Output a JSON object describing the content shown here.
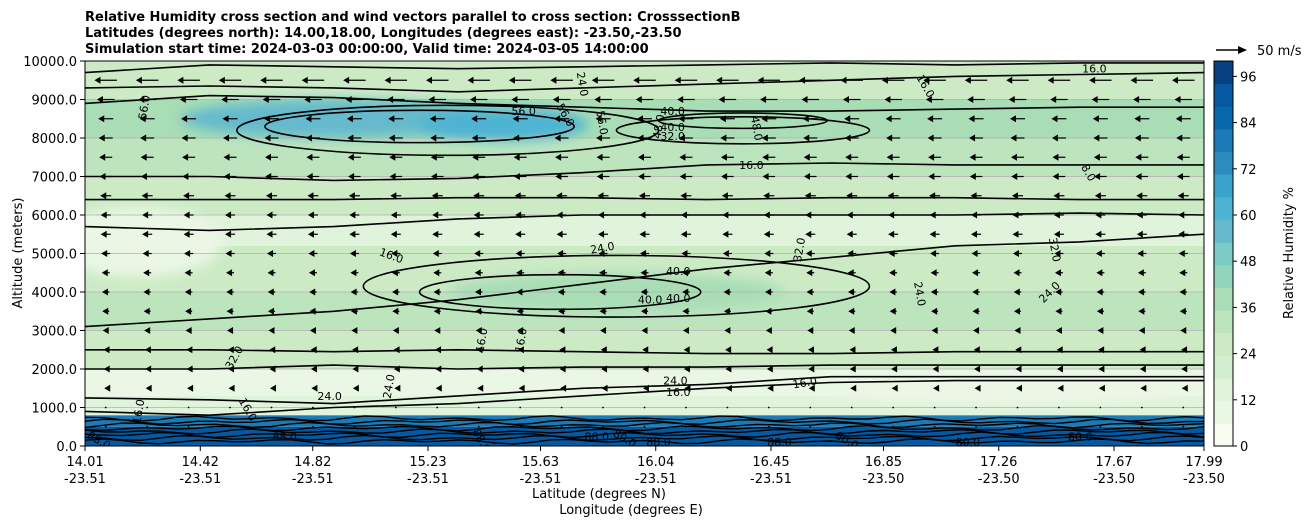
{
  "chart_data": {
    "type": "heatmap",
    "title_lines": [
      "Relative Humidity cross section and wind vectors parallel to cross section: CrosssectionB",
      "Latitudes (degrees north): 14.00,18.00, Longitudes (degrees east): -23.50,-23.50",
      "Simulation start time: 2024-03-03 00:00:00, Valid time: 2024-03-05 14:00:00"
    ],
    "ylabel": "Altitude (meters)",
    "xlabel_lines": [
      "Latitude (degrees N)",
      "Longitude (degrees E)"
    ],
    "ylim": [
      0,
      10000
    ],
    "yticks": [
      "0.0",
      "1000.0",
      "2000.0",
      "3000.0",
      "4000.0",
      "5000.0",
      "6000.0",
      "7000.0",
      "8000.0",
      "9000.0",
      "10000.0"
    ],
    "ytick_values": [
      0,
      1000,
      2000,
      3000,
      4000,
      5000,
      6000,
      7000,
      8000,
      9000,
      10000
    ],
    "xticks_lat": [
      "14.01",
      "14.42",
      "14.82",
      "15.23",
      "15.63",
      "16.04",
      "16.45",
      "16.85",
      "17.26",
      "17.67",
      "17.99"
    ],
    "xticks_lon": [
      "-23.51",
      "-23.51",
      "-23.51",
      "-23.51",
      "-23.51",
      "-23.51",
      "-23.51",
      "-23.50",
      "-23.50",
      "-23.50",
      "-23.50"
    ],
    "xtick_values": [
      14.01,
      14.42,
      14.82,
      15.23,
      15.63,
      16.04,
      16.45,
      16.85,
      17.26,
      17.67,
      17.99
    ],
    "xlim": [
      14.01,
      17.99
    ],
    "grid": "horizontal",
    "colorbar": {
      "label": "Relative Humidity %",
      "ticks": [
        "0",
        "12",
        "24",
        "36",
        "48",
        "60",
        "72",
        "84",
        "96"
      ],
      "tick_values": [
        0,
        12,
        24,
        36,
        48,
        60,
        72,
        84,
        96
      ],
      "range": [
        0,
        100
      ],
      "colors": [
        "#f7fcf0",
        "#ebf7e5",
        "#e0f3db",
        "#d3eece",
        "#ccebc5",
        "#bce5be",
        "#a8ddb5",
        "#92d4bc",
        "#7bccc4",
        "#65bacd",
        "#4eb3d3",
        "#3ba3c9",
        "#2b8cbe",
        "#1c7bb6",
        "#0868ac",
        "#0658a0",
        "#084081"
      ]
    },
    "quiver_key": {
      "label": "50 m/s",
      "value": 50
    },
    "rh_bands": [
      {
        "ymin": 0,
        "ymax": 500,
        "rh": 92
      },
      {
        "ymin": 500,
        "ymax": 800,
        "rh": 80
      },
      {
        "ymin": 800,
        "ymax": 1300,
        "rh": 14
      },
      {
        "ymin": 1300,
        "ymax": 2000,
        "rh": 10
      },
      {
        "ymin": 2000,
        "ymax": 3000,
        "rh": 26
      },
      {
        "ymin": 3000,
        "ymax": 4000,
        "rh": 30
      },
      {
        "ymin": 4000,
        "ymax": 5200,
        "rh": 24
      },
      {
        "ymin": 5200,
        "ymax": 6000,
        "rh": 14
      },
      {
        "ymin": 6000,
        "ymax": 7000,
        "rh": 24
      },
      {
        "ymin": 7000,
        "ymax": 8000,
        "rh": 30
      },
      {
        "ymin": 8000,
        "ymax": 9000,
        "rh": 38
      },
      {
        "ymin": 9000,
        "ymax": 10000,
        "rh": 28
      }
    ],
    "rh_blobs": [
      {
        "x": 14.9,
        "y": 8500,
        "rx": 0.55,
        "ry": 500,
        "rh": 58
      },
      {
        "x": 15.5,
        "y": 8350,
        "rx": 0.3,
        "ry": 420,
        "rh": 62
      },
      {
        "x": 16.3,
        "y": 8500,
        "rx": 0.35,
        "ry": 400,
        "rh": 40
      },
      {
        "x": 15.9,
        "y": 4000,
        "rx": 0.6,
        "ry": 500,
        "rh": 40
      },
      {
        "x": 14.2,
        "y": 5300,
        "rx": 0.3,
        "ry": 900,
        "rh": 8
      },
      {
        "x": 17.3,
        "y": 1500,
        "rx": 0.7,
        "ry": 400,
        "rh": 6
      }
    ],
    "contour_lines": [
      {
        "y": [
          3100,
          3300,
          3500,
          3800,
          4200,
          4600,
          4900,
          5200,
          5300,
          5500
        ]
      },
      {
        "y": [
          2500,
          2500,
          2450,
          2500,
          2450,
          2400,
          2400,
          2450,
          2450,
          2450
        ]
      },
      {
        "y": [
          2000,
          2000,
          2100,
          2000,
          2050,
          2050,
          2100,
          2100,
          2100,
          2100
        ]
      },
      {
        "y": [
          1250,
          1200,
          1100,
          1300,
          1500,
          1600,
          1800,
          1800,
          1800,
          1800
        ]
      },
      {
        "y": [
          900,
          800,
          1000,
          1100,
          1300,
          1500,
          1650,
          1700,
          1700,
          1700
        ]
      },
      {
        "y": [
          5700,
          5600,
          5700,
          5900,
          6000,
          6000,
          6000,
          6000,
          6050,
          6000
        ]
      },
      {
        "y": [
          6400,
          6400,
          6400,
          6450,
          6450,
          6400,
          6450,
          6450,
          6400,
          6400
        ]
      },
      {
        "y": [
          7000,
          7000,
          6900,
          6950,
          7100,
          7300,
          7350,
          7300,
          7300,
          7300
        ]
      },
      {
        "y": [
          8900,
          9100,
          9050,
          8900,
          8800,
          8700,
          8700,
          8750,
          8800,
          8800
        ]
      },
      {
        "y": [
          9300,
          9350,
          9300,
          9200,
          9300,
          9400,
          9500,
          9600,
          9650,
          9700
        ]
      },
      {
        "y": [
          9700,
          9900,
          9850,
          9800,
          9850,
          9900,
          9950,
          9900,
          9950,
          9950
        ]
      }
    ],
    "contour_loops": [
      {
        "x": 15.2,
        "y": 8300,
        "rx": 0.55,
        "ry": 420
      },
      {
        "x": 15.3,
        "y": 8200,
        "rx": 0.75,
        "ry": 650
      },
      {
        "x": 15.7,
        "y": 4000,
        "rx": 0.5,
        "ry": 450
      },
      {
        "x": 15.9,
        "y": 4150,
        "rx": 0.9,
        "ry": 800
      },
      {
        "x": 16.35,
        "y": 8450,
        "rx": 0.3,
        "ry": 200
      },
      {
        "x": 16.35,
        "y": 8200,
        "rx": 0.45,
        "ry": 350
      }
    ],
    "contour_labels": [
      {
        "text": "56.0",
        "x": 14.22,
        "y": 8800,
        "rot": -80
      },
      {
        "text": "56.0",
        "x": 15.57,
        "y": 8700,
        "rot": 0
      },
      {
        "text": "56.0",
        "x": 15.72,
        "y": 8600,
        "rot": 60
      },
      {
        "text": "56.0",
        "x": 15.85,
        "y": 8400,
        "rot": 80
      },
      {
        "text": "48.0",
        "x": 16.05,
        "y": 8300,
        "rot": -80
      },
      {
        "text": "40.0",
        "x": 16.1,
        "y": 8700,
        "rot": 0
      },
      {
        "text": "40.0",
        "x": 16.1,
        "y": 8280,
        "rot": 0
      },
      {
        "text": "32.0",
        "x": 16.1,
        "y": 8050,
        "rot": 0
      },
      {
        "text": "48.0",
        "x": 16.4,
        "y": 8250,
        "rot": 80
      },
      {
        "text": "24.0",
        "x": 15.78,
        "y": 9400,
        "rot": 80
      },
      {
        "text": "16.0",
        "x": 16.38,
        "y": 7300,
        "rot": 0
      },
      {
        "text": "16.0",
        "x": 17.0,
        "y": 9350,
        "rot": 60
      },
      {
        "text": "16.0",
        "x": 17.6,
        "y": 9800,
        "rot": 0
      },
      {
        "text": "8.0",
        "x": 17.58,
        "y": 7100,
        "rot": 60
      },
      {
        "text": "24.0",
        "x": 15.85,
        "y": 5150,
        "rot": -10
      },
      {
        "text": "16.0",
        "x": 15.1,
        "y": 4950,
        "rot": 20
      },
      {
        "text": "40.0",
        "x": 16.12,
        "y": 4550,
        "rot": 0
      },
      {
        "text": "40.0",
        "x": 16.02,
        "y": 3800,
        "rot": 0
      },
      {
        "text": "40.0",
        "x": 16.12,
        "y": 3850,
        "rot": 0
      },
      {
        "text": "32.0",
        "x": 16.55,
        "y": 5100,
        "rot": -80
      },
      {
        "text": "24.0",
        "x": 16.98,
        "y": 3950,
        "rot": 80
      },
      {
        "text": "32.0",
        "x": 17.46,
        "y": 5100,
        "rot": 80
      },
      {
        "text": "24.0",
        "x": 17.44,
        "y": 4000,
        "rot": -45
      },
      {
        "text": "16.0",
        "x": 15.42,
        "y": 2750,
        "rot": -80
      },
      {
        "text": "16.0",
        "x": 15.56,
        "y": 2750,
        "rot": -80
      },
      {
        "text": "32.0",
        "x": 14.54,
        "y": 2300,
        "rot": -60
      },
      {
        "text": "24.0",
        "x": 16.11,
        "y": 1700,
        "rot": 0
      },
      {
        "text": "16.0",
        "x": 16.57,
        "y": 1650,
        "rot": -10
      },
      {
        "text": "16.0",
        "x": 16.12,
        "y": 1400,
        "rot": 0
      },
      {
        "text": "24.0",
        "x": 14.88,
        "y": 1300,
        "rot": 0
      },
      {
        "text": "24.0",
        "x": 15.09,
        "y": 1550,
        "rot": -80
      },
      {
        "text": "16.0",
        "x": 14.59,
        "y": 950,
        "rot": 60
      },
      {
        "text": "16.0",
        "x": 14.2,
        "y": 900,
        "rot": -80
      },
      {
        "text": "88.0",
        "x": 14.06,
        "y": 150,
        "rot": 30
      },
      {
        "text": "88.0",
        "x": 14.72,
        "y": 250,
        "rot": 0
      },
      {
        "text": "88.0",
        "x": 15.42,
        "y": 150,
        "rot": 60
      },
      {
        "text": "88.0",
        "x": 15.83,
        "y": 250,
        "rot": 0
      },
      {
        "text": "80.0",
        "x": 15.93,
        "y": 200,
        "rot": 30
      },
      {
        "text": "88.0",
        "x": 16.05,
        "y": 100,
        "rot": 0
      },
      {
        "text": "88.0",
        "x": 16.48,
        "y": 100,
        "rot": 0
      },
      {
        "text": "80.0",
        "x": 16.72,
        "y": 150,
        "rot": 30
      },
      {
        "text": "80.0",
        "x": 17.15,
        "y": 100,
        "rot": 0
      },
      {
        "text": "80.0",
        "x": 17.55,
        "y": 250,
        "rot": 0
      }
    ],
    "wind_levels": [
      500,
      1000,
      1500,
      2000,
      2500,
      3000,
      3500,
      4000,
      4500,
      5000,
      5500,
      6000,
      6500,
      7000,
      7500,
      8000,
      8500,
      9000,
      9500
    ],
    "wind_columns": 27,
    "wind_speed": [
      0.3,
      0.5,
      0.6,
      0.8,
      0.9,
      1.2,
      1.4,
      1.5,
      1.6,
      1.8,
      2.0,
      2.0,
      2.2,
      2.5,
      2.6,
      2.8,
      3.0,
      3.5,
      4.5
    ]
  }
}
